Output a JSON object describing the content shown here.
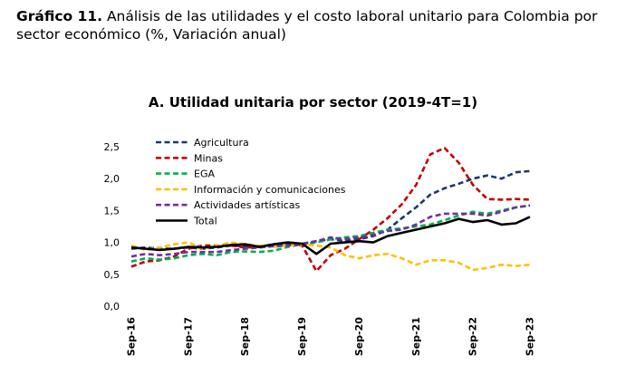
{
  "figure": {
    "label": "Gráfico 11.",
    "caption": "Análisis de las utilidades y el costo laboral unitario para Colombia por sector económico (%, Variación anual)"
  },
  "chart_data": {
    "type": "line",
    "title": "A. Utilidad unitaria por sector (2019-4T=1)",
    "xlabel": "",
    "ylabel": "",
    "ylim": [
      0,
      2.5
    ],
    "yticks": [
      "0,0",
      "0,5",
      "1,0",
      "1,5",
      "2,0",
      "2,5"
    ],
    "x": [
      "Sep-16",
      "Dic-16",
      "Mar-17",
      "Jun-17",
      "Sep-17",
      "Dic-17",
      "Mar-18",
      "Jun-18",
      "Sep-18",
      "Dic-18",
      "Mar-19",
      "Jun-19",
      "Sep-19",
      "Dic-19",
      "Mar-20",
      "Jun-20",
      "Sep-20",
      "Dic-20",
      "Mar-21",
      "Jun-21",
      "Sep-21",
      "Dic-21",
      "Mar-22",
      "Jun-22",
      "Sep-22",
      "Dic-22",
      "Mar-23",
      "Jun-23",
      "Sep-23"
    ],
    "xticks": [
      "Sep-16",
      "Sep-17",
      "Sep-18",
      "Sep-19",
      "Sep-20",
      "Sep-21",
      "Sep-22",
      "Sep-23"
    ],
    "legend_position": "top-left",
    "grid": false,
    "series": [
      {
        "name": "Agricultura",
        "color": "#1f3864",
        "dash": "dashed",
        "values": [
          0.9,
          0.92,
          0.9,
          0.9,
          0.92,
          0.9,
          0.92,
          0.95,
          0.94,
          0.93,
          0.95,
          0.97,
          0.98,
          1.02,
          1.05,
          1.02,
          1.05,
          1.1,
          1.2,
          1.38,
          1.55,
          1.75,
          1.85,
          1.92,
          2.0,
          2.05,
          2.0,
          2.1,
          2.12
        ]
      },
      {
        "name": "Minas",
        "color": "#c00000",
        "dash": "dashed",
        "values": [
          0.62,
          0.7,
          0.72,
          0.78,
          0.9,
          0.95,
          0.95,
          0.95,
          0.92,
          0.93,
          0.97,
          1.0,
          0.95,
          0.55,
          0.8,
          0.9,
          1.05,
          1.2,
          1.38,
          1.6,
          1.9,
          2.38,
          2.48,
          2.25,
          1.9,
          1.68,
          1.67,
          1.68,
          1.67
        ]
      },
      {
        "name": "EGA",
        "color": "#00b050",
        "dash": "dashed",
        "values": [
          0.7,
          0.75,
          0.73,
          0.75,
          0.8,
          0.82,
          0.8,
          0.85,
          0.86,
          0.85,
          0.87,
          0.93,
          0.97,
          1.0,
          1.05,
          1.08,
          1.1,
          1.15,
          1.2,
          1.22,
          1.25,
          1.28,
          1.35,
          1.42,
          1.48,
          1.45,
          1.5,
          1.55,
          1.58
        ]
      },
      {
        "name": "Información y comunicaciones",
        "color": "#ffc000",
        "dash": "dashed",
        "values": [
          0.95,
          0.88,
          0.92,
          0.97,
          1.0,
          0.9,
          0.95,
          1.0,
          0.97,
          0.95,
          0.93,
          0.95,
          0.97,
          0.95,
          0.92,
          0.8,
          0.75,
          0.8,
          0.82,
          0.75,
          0.65,
          0.72,
          0.72,
          0.68,
          0.57,
          0.6,
          0.65,
          0.63,
          0.65
        ]
      },
      {
        "name": "Actividades artísticas",
        "color": "#7030a0",
        "dash": "dashed",
        "values": [
          0.78,
          0.82,
          0.8,
          0.82,
          0.85,
          0.85,
          0.85,
          0.88,
          0.9,
          0.92,
          0.94,
          0.95,
          0.97,
          1.02,
          1.08,
          1.05,
          1.08,
          1.12,
          1.18,
          1.2,
          1.28,
          1.4,
          1.45,
          1.45,
          1.45,
          1.42,
          1.48,
          1.55,
          1.58
        ]
      },
      {
        "name": "Total",
        "color": "#000000",
        "dash": "solid",
        "values": [
          0.92,
          0.9,
          0.88,
          0.9,
          0.93,
          0.92,
          0.93,
          0.96,
          0.97,
          0.93,
          0.97,
          1.0,
          0.98,
          0.82,
          0.98,
          1.0,
          1.02,
          1.0,
          1.1,
          1.15,
          1.2,
          1.25,
          1.3,
          1.37,
          1.32,
          1.35,
          1.28,
          1.3,
          1.4
        ]
      }
    ]
  }
}
